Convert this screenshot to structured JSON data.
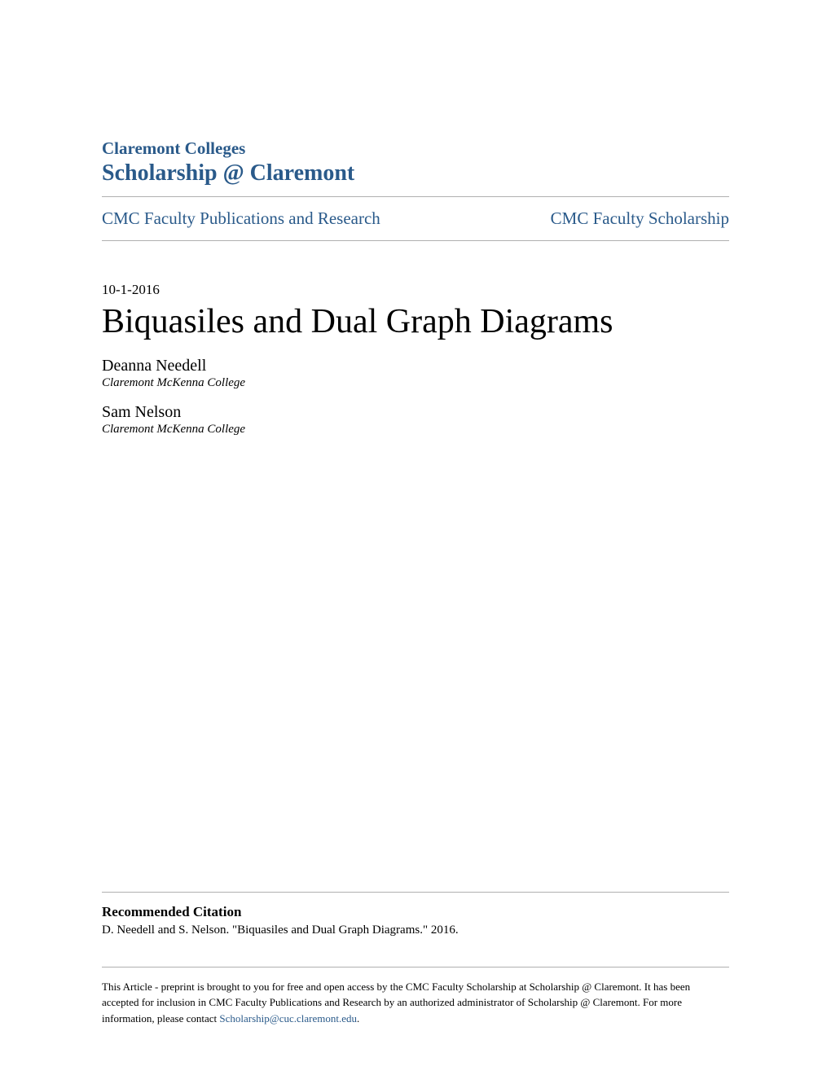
{
  "header": {
    "institution": "Claremont Colleges",
    "repository": "Scholarship @ Claremont",
    "nav_left": "CMC Faculty Publications and Research",
    "nav_right": "CMC Faculty Scholarship"
  },
  "paper": {
    "date": "10-1-2016",
    "title": "Biquasiles and Dual Graph Diagrams",
    "authors": [
      {
        "name": "Deanna Needell",
        "affiliation": "Claremont McKenna College"
      },
      {
        "name": "Sam Nelson",
        "affiliation": "Claremont McKenna College"
      }
    ]
  },
  "citation": {
    "heading": "Recommended Citation",
    "text": "D. Needell and S. Nelson. \"Biquasiles and Dual Graph Diagrams.\" 2016."
  },
  "footer": {
    "text_before_email": "This Article - preprint is brought to you for free and open access by the CMC Faculty Scholarship at Scholarship @ Claremont. It has been accepted for inclusion in CMC Faculty Publications and Research by an authorized administrator of Scholarship @ Claremont. For more information, please contact ",
    "email": "Scholarship@cuc.claremont.edu",
    "text_after_email": "."
  },
  "colors": {
    "link_color": "#2a5a8a",
    "text_color": "#000000",
    "divider_color": "#b0b0b0",
    "background_color": "#ffffff"
  }
}
